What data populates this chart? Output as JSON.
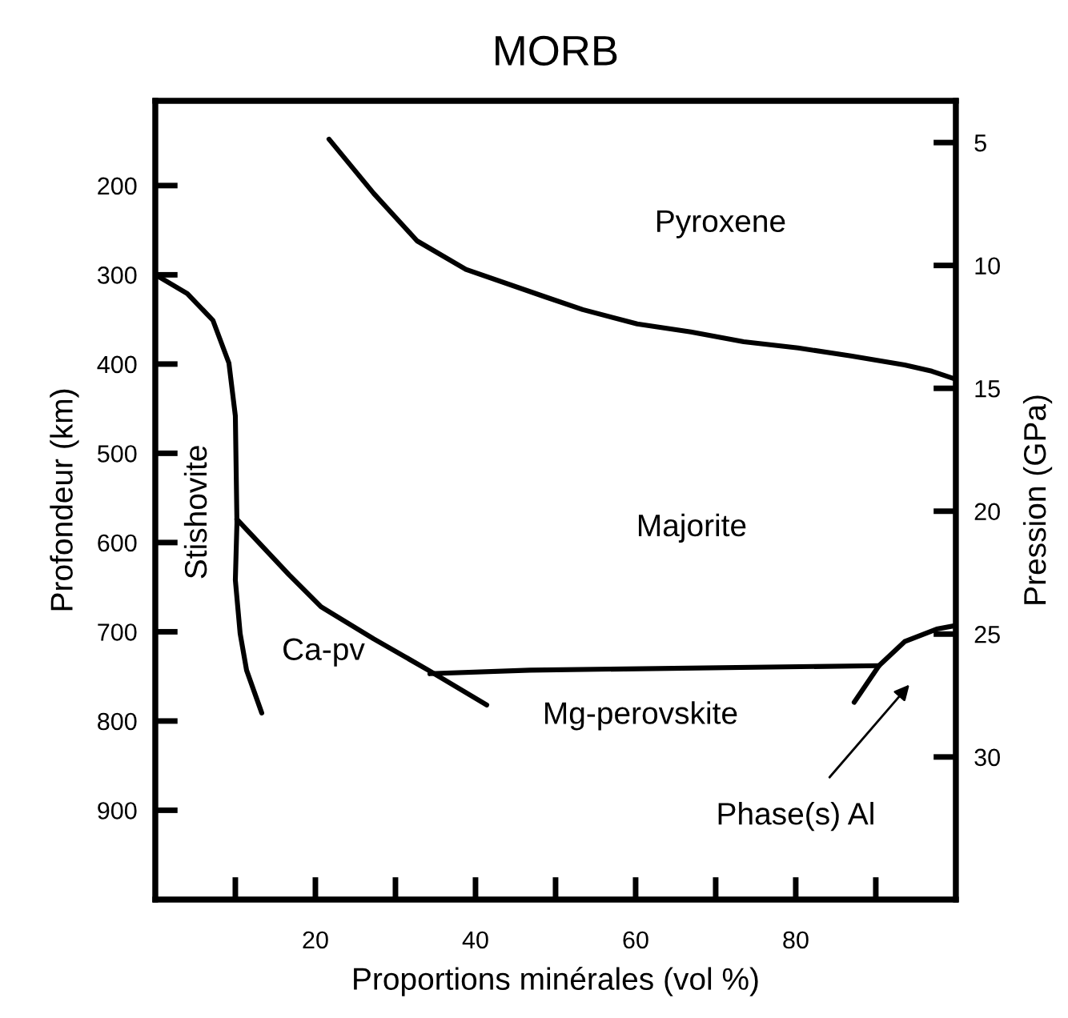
{
  "chart_data": {
    "type": "line",
    "title": "MORB",
    "xlabel": "Proportions minérales (vol %)",
    "ylabel": "Profondeur (km)",
    "y2label": "Pression (GPa)",
    "xlim": [
      0,
      100
    ],
    "xticks": [
      {
        "value": 10,
        "label": null
      },
      20,
      {
        "value": 30,
        "label": null
      },
      40,
      {
        "value": 50,
        "label": null
      },
      60,
      {
        "value": 70,
        "label": null
      },
      80,
      {
        "value": 90,
        "label": null
      }
    ],
    "ylim": [
      1000,
      105
    ],
    "yticks": [
      200,
      300,
      400,
      500,
      600,
      700,
      800,
      900
    ],
    "y2lim": [
      35.8,
      3.3
    ],
    "y2ticks": [
      5,
      10,
      15,
      20,
      25,
      30
    ],
    "grid": false,
    "line_style": "solid",
    "marker": "none",
    "series": [
      {
        "color": "#000000",
        "x": [
          21.7,
          27.3,
          32.7,
          38.8,
          48.8,
          53.4,
          60.2,
          66.9,
          73.5,
          80.3,
          86.9,
          93.6,
          97.0,
          100
        ],
        "values": [
          148,
          209,
          262,
          294,
          325,
          339,
          355,
          364,
          375,
          382,
          391,
          401,
          408,
          417
        ]
      },
      {
        "color": "#000000",
        "x": [
          0.2,
          4.0,
          7.2,
          9.2,
          10.0,
          10.2,
          10.0,
          10.6,
          11.4,
          13.3
        ],
        "values": [
          301,
          321,
          351,
          399,
          458,
          578,
          642,
          702,
          743,
          791
        ]
      },
      {
        "color": "#000000",
        "x": [
          10.2,
          16.7,
          20.7,
          27.3,
          34.1,
          41.4
        ],
        "values": [
          574,
          636,
          672,
          708,
          743,
          782
        ]
      },
      {
        "color": "#000000",
        "x": [
          34.3,
          46.8,
          90.4
        ],
        "values": [
          747,
          743,
          738
        ]
      },
      {
        "color": "#000000",
        "x": [
          87.3,
          90.4,
          93.6,
          97.6,
          100
        ],
        "values": [
          779,
          738,
          711,
          697,
          693
        ]
      }
    ],
    "annotations": [
      "Stishovite",
      "Pyroxene",
      "Majorite",
      "Ca-pv",
      "Mg-perovskite",
      "Phase(s) Al"
    ]
  }
}
